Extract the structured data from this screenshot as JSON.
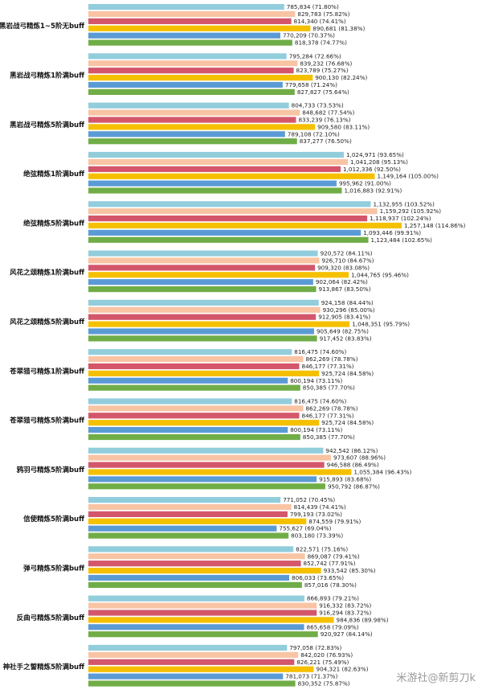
{
  "chart_data": {
    "type": "bar",
    "orientation": "horizontal",
    "grid": false,
    "legend": "none",
    "xlim": [
      0,
      1257148
    ],
    "series_colors": [
      "#92cddc",
      "#f8c4a4",
      "#d4566a",
      "#f5c000",
      "#5b9bd5",
      "#70ad47"
    ],
    "categories": [
      "黑岩战弓精炼1~5阶无buff",
      "黑岩战弓精炼1阶满buff",
      "黑岩战弓精炼5阶满buff",
      "绝弦精炼1阶满buff",
      "绝弦精炼5阶满buff",
      "风花之颂精炼1阶满buff",
      "风花之颂精炼5阶满buff",
      "苍翠猎弓精炼1阶满buff",
      "苍翠猎弓精炼5阶满buff",
      "鸦羽弓精炼5阶满buff",
      "信使精炼5阶满buff",
      "弹弓精炼5阶满buff",
      "反曲弓精炼5阶满buff",
      "神社手之誓精炼5阶满buff"
    ],
    "values": [
      [
        785834,
        829783,
        814340,
        890681,
        770209,
        818378
      ],
      [
        795284,
        839232,
        823789,
        900130,
        779658,
        827827
      ],
      [
        804733,
        848682,
        833239,
        909580,
        789108,
        837277
      ],
      [
        1024971,
        1041208,
        1012336,
        1149164,
        995962,
        1016883
      ],
      [
        1132955,
        1159292,
        1118937,
        1257148,
        1093446,
        1123484
      ],
      [
        920572,
        926710,
        909320,
        1044765,
        902064,
        913867
      ],
      [
        924158,
        930296,
        912905,
        1048351,
        905649,
        917452
      ],
      [
        816475,
        862269,
        846177,
        925724,
        800194,
        850385
      ],
      [
        816475,
        862269,
        846177,
        925724,
        800194,
        850385
      ],
      [
        942542,
        973607,
        946588,
        1055384,
        915893,
        950792
      ],
      [
        771052,
        814439,
        799193,
        874559,
        755627,
        803180
      ],
      [
        822571,
        869087,
        852742,
        933542,
        806033,
        857016
      ],
      [
        866893,
        916332,
        916294,
        984836,
        865658,
        920927
      ],
      [
        797058,
        842020,
        826221,
        904321,
        781073,
        830352
      ]
    ],
    "value_labels": [
      [
        "785,834 (71.80%)",
        "829,783 (75.82%)",
        "814,340 (74.41%)",
        "890,681 (81.38%)",
        "770,209 (70.37%)",
        "818,378 (74.77%)"
      ],
      [
        "795,284 (72.66%)",
        "839,232 (76.68%)",
        "823,789 (75.27%)",
        "900,130 (82.24%)",
        "779,658 (71.24%)",
        "827,827 (75.64%)"
      ],
      [
        "804,733 (73.53%)",
        "848,682 (77.54%)",
        "833,239 (76.13%)",
        "909,580 (83.11%)",
        "789,108 (72.10%)",
        "837,277 (76.50%)"
      ],
      [
        "1,024,971 (93.65%)",
        "1,041,208 (95.13%)",
        "1,012,336 (92.50%)",
        "1,149,164 (105.00%)",
        "995,962 (91.00%)",
        "1,016,883 (92.91%)"
      ],
      [
        "1,132,955 (103.52%)",
        "1,159,292 (105.92%)",
        "1,118,937 (102.24%)",
        "1,257,148 (114.86%)",
        "1,093,446 (99.91%)",
        "1,123,484 (102.65%)"
      ],
      [
        "920,572 (84.11%)",
        "926,710 (84.67%)",
        "909,320 (83.08%)",
        "1,044,765 (95.46%)",
        "902,064 (82.42%)",
        "913,867 (83.50%)"
      ],
      [
        "924,158 (84.44%)",
        "930,296 (85.00%)",
        "912,905 (83.41%)",
        "1,048,351 (95.79%)",
        "905,649 (82.75%)",
        "917,452 (83.83%)"
      ],
      [
        "816,475 (74.60%)",
        "862,269 (78.78%)",
        "846,177 (77.31%)",
        "925,724 (84.58%)",
        "800,194 (73.11%)",
        "850,385 (77.70%)"
      ],
      [
        "816,475 (74.60%)",
        "862,269 (78.78%)",
        "846,177 (77.31%)",
        "925,724 (84.58%)",
        "800,194 (73.11%)",
        "850,385 (77.70%)"
      ],
      [
        "942,542 (86.12%)",
        "973,607 (88.96%)",
        "946,588 (86.49%)",
        "1,055,384 (96.43%)",
        "915,893 (83.68%)",
        "950,792 (86.87%)"
      ],
      [
        "771,052 (70.45%)",
        "814,439 (74.41%)",
        "799,193 (73.02%)",
        "874,559 (79.91%)",
        "755,627 (69.04%)",
        "803,180 (73.39%)"
      ],
      [
        "822,571 (75.16%)",
        "869,087 (79.41%)",
        "852,742 (77.91%)",
        "933,542 (85.30%)",
        "806,033 (73.65%)",
        "857,016 (78.30%)"
      ],
      [
        "866,893 (79.21%)",
        "916,332 (83.72%)",
        "916,294 (83.72%)",
        "984,836 (89.98%)",
        "865,658 (79.09%)",
        "920,927 (84.14%)"
      ],
      [
        "797,058 (72.83%)",
        "842,020 (76.93%)",
        "826,221 (75.49%)",
        "904,321 (82.63%)",
        "781,073 (71.37%)",
        "830,352 (75.87%)"
      ]
    ]
  },
  "watermark": "米游社@新剪刀k"
}
